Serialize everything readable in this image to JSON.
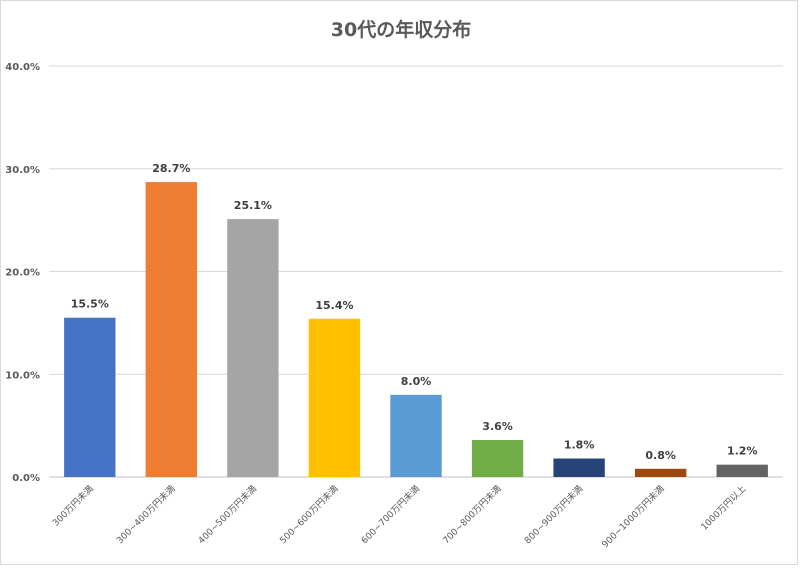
{
  "chart_data": {
    "type": "bar",
    "title": "30代の年収分布",
    "xlabel": "",
    "ylabel": "",
    "ylim": [
      0,
      40
    ],
    "yticks": [
      "0.0%",
      "10.0%",
      "20.0%",
      "30.0%",
      "40.0%"
    ],
    "grid": true,
    "legend": "none",
    "categories": [
      "300万円未満",
      "300~400万円未満",
      "400~500万円未満",
      "500~600万円未満",
      "600~700万円未満",
      "700~800万円未満",
      "800~900万円未満",
      "900~1000万円未満",
      "1000万円以上"
    ],
    "values": [
      15.5,
      28.7,
      25.1,
      15.4,
      8.0,
      3.6,
      1.8,
      0.8,
      1.2
    ],
    "data_labels": [
      "15.5%",
      "28.7%",
      "25.1%",
      "15.4%",
      "8.0%",
      "3.6%",
      "1.8%",
      "0.8%",
      "1.2%"
    ],
    "colors": [
      "#4472c4",
      "#ed7d31",
      "#a5a5a5",
      "#ffc000",
      "#5b9bd5",
      "#70ad47",
      "#264478",
      "#9e480e",
      "#636363"
    ]
  }
}
